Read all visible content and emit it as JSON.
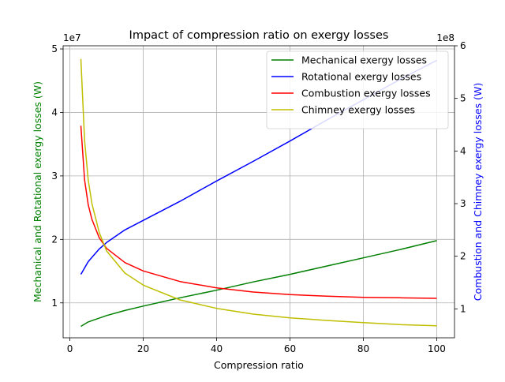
{
  "chart_data": {
    "type": "line",
    "title": "Impact of compression ratio on exergy losses",
    "xlabel": "Compression ratio",
    "ylabel_left": "Mechanical  and Rotational exergy losses (W)",
    "ylabel_right": "Combustion and Chimney exergy losses (W)",
    "left_offset_text": "1e7",
    "right_offset_text": "1e8",
    "xlim": [
      -1.85,
      104.85
    ],
    "ylim_left": [
      0.45,
      5.05
    ],
    "ylim_right": [
      0.45,
      6.0
    ],
    "x_ticks": [
      0,
      20,
      40,
      60,
      80,
      100
    ],
    "left_ticks": [
      1,
      2,
      3,
      4,
      5
    ],
    "right_ticks": [
      1,
      2,
      3,
      4,
      5,
      6
    ],
    "grid": true,
    "legend_position": "top-right",
    "colors": {
      "left_axis_label": "#008000",
      "right_axis_label": "#0000ff"
    },
    "series": [
      {
        "name": "Mechanical exergy losses",
        "axis": "left",
        "color": "#008000",
        "x": [
          3,
          5,
          10,
          15,
          20,
          30,
          40,
          50,
          60,
          70,
          80,
          90,
          100
        ],
        "y": [
          0.63,
          0.7,
          0.8,
          0.88,
          0.95,
          1.08,
          1.2,
          1.33,
          1.45,
          1.58,
          1.71,
          1.84,
          1.98
        ]
      },
      {
        "name": "Rotational exergy losses",
        "axis": "left",
        "color": "#0000ff",
        "x": [
          3,
          5,
          8,
          10,
          15,
          20,
          30,
          40,
          50,
          60,
          70,
          80,
          90,
          100
        ],
        "y": [
          1.45,
          1.65,
          1.85,
          1.95,
          2.15,
          2.3,
          2.6,
          2.92,
          3.23,
          3.55,
          3.88,
          4.2,
          4.52,
          4.82
        ]
      },
      {
        "name": "Combustion exergy losses",
        "axis": "right",
        "color": "#ff0000",
        "x": [
          3,
          4,
          5,
          6,
          8,
          10,
          15,
          20,
          30,
          40,
          50,
          60,
          70,
          80,
          90,
          100
        ],
        "y": [
          4.48,
          3.45,
          2.98,
          2.7,
          2.35,
          2.15,
          1.88,
          1.72,
          1.52,
          1.4,
          1.32,
          1.27,
          1.24,
          1.22,
          1.21,
          1.2
        ]
      },
      {
        "name": "Chimney exergy losses",
        "axis": "right",
        "color": "#bfbf00",
        "x": [
          3,
          4,
          5,
          6,
          8,
          10,
          15,
          20,
          30,
          40,
          50,
          60,
          70,
          80,
          90,
          100
        ],
        "y": [
          5.75,
          4.2,
          3.45,
          3.0,
          2.45,
          2.1,
          1.68,
          1.45,
          1.17,
          1.01,
          0.9,
          0.83,
          0.78,
          0.74,
          0.7,
          0.68
        ]
      }
    ]
  }
}
